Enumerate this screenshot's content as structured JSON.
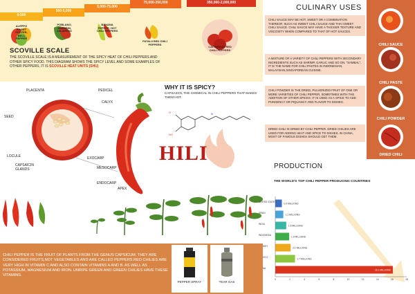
{
  "scoville": {
    "steps": [
      {
        "range": "0-500",
        "name": "ALEPPO SWEET PEPPER, BELL PEPPER",
        "color": "#f7b31c"
      },
      {
        "range": "500-5,000",
        "name": "POBLANO, ANAHEIM, JALAPENO",
        "color": "#f8a31a"
      },
      {
        "range": "5,000-75,000",
        "name": "BANANA PEPPER, HOT CHILI PEPPERS",
        "color": "#f58a1f"
      },
      {
        "range": "75,000-350,000",
        "name": "FATALII RED CHILI PEPPERS",
        "color": "#ef6a21"
      },
      {
        "range": "350,000-2,000,000",
        "name": "CARIBBEAN RED CHILI PEPPERS",
        "color": "#d9341d"
      }
    ],
    "title": "SCOVILLE SCALE",
    "description": "THE SCOVILLE SCALE IS A MEASUREMENT OF THE SPICY HEAT OF CHILI PEPPERS AND OTHER SPICY FOOD. THIS DIAGRAM SHOWS THE SPICY LEVEL AND SOME EXAMPLES OF OTHER PEPPERS, IT IS",
    "highlight": "SCOVILLE HEAT UNITS (SHU)"
  },
  "anatomy": {
    "labels": {
      "placenta": "PLACENTA",
      "pedicel": "PEDICEL",
      "calyx": "CALYX",
      "seed": "SEED",
      "locule": "LOCULE",
      "capsaicin": "CAPSAICIN GLANDS",
      "exocarp": "EXOCARP",
      "mesocarp": "MESOCARP",
      "endocarp": "ENDOCARP",
      "apex": "APEX"
    },
    "word": "HILI",
    "why_title": "WHY IT IS SPICY?",
    "why_text": "CAPSAICIN, THE CHEMICAL IN CHILI PEPPERS THAT MAKES THEM HOT."
  },
  "culinary": {
    "title": "CULINARY USES",
    "items": [
      {
        "text": "CHILI SAUCE MAY BE HOT, SWEET OR A COMBINATION THEREOF, SUCH AS SWEET CHILI SAUCE AND THAI SWEET CHILI SAUCE. CHILI SAUCE MAY HAVE A THICKER TEXTURE AND VISCOSITY WHEN COMPARED TO THAT OF HOT SAUCES.",
        "label": "CHILI SAUCE"
      },
      {
        "text": "A MIXTURE OF A VARIETY OF CHILI PEPPERS WITH SECONDARY INGREDIENTS SUCH AS SHRIMP, GARLIC AND SO ON. \"SAMBAL\", IT IS THE NAME FOR CHILI PASTES IN INDONESIAN, MALAYSIAN,SINGAPOREAN CUISINE.",
        "label": "CHILI PASTE"
      },
      {
        "text": "CHILI POWDER IS THE DRIED, PULVERIZED FRUIT OF ONE OR MORE VARIETIES OF CHILI PEPPER, SOMETIMES WITH THE ADDITION OF OTHER SPICES. IT IS USED AS A SPICE TO ADD PUNGENCY OR PIQUANCY AND FLAVOR TO DISHES.",
        "label": "CHILI POWDER"
      },
      {
        "text": "DRIED CHILI IS DRIED BY CHILI PEPPER. DRIED CHILIES ARE USED FOR ADDING HEAT AND SPICE TO DISHES. IN CHINA, MOST OF FAMOUS DISHES SHOULD GET THEM.",
        "label": "DRIED CHILI"
      }
    ]
  },
  "production": {
    "title": "PRODUCTION"
  },
  "chart_data": {
    "type": "bar",
    "title": "THE WORLD'S TOP CHILI PEPPER PRODUCING COUNTRIES",
    "categories": [
      "UNITED STATES",
      "SPAIN",
      "INDIA",
      "INDONESIA",
      "TURKEY",
      "MEXICO",
      "CHINA"
    ],
    "values": [
      0.9,
      1.1,
      1.5,
      1.9,
      2.1,
      2.7,
      16.1
    ],
    "value_labels": [
      "0.9 MILLIONS",
      "1.1 MILLIONS",
      "1.5 MILLIONS",
      "1.9 MILLIONS",
      "2.1 MILLIONS",
      "2.7 MILLIONS",
      "16.1 MILLIONS"
    ],
    "colors": [
      "#3b6fc4",
      "#4aa4d8",
      "#38b7a4",
      "#3fae4a",
      "#f0a81e",
      "#8dc63f",
      "#d9341d"
    ],
    "xlim": [
      0,
      18
    ],
    "xticks": [
      "0",
      "2",
      "4",
      "6",
      "8",
      "10",
      "12",
      "14",
      "16",
      "18"
    ]
  },
  "bottom": {
    "text": "CHILI PEPPER IS THE FRUIT OF PLANTS FROM THE GENUS CAPSICUM. THEY ARE CONSIDERED FRUITS,NOT VEGETABLES AND ARE CALLED PEPPERS.RED CHILIES ARE VERY HIGH IN VITAMIN C AND ALSO CONTAIN VITAMINS A AND B. AS WELL AS POTASSIUM, MAGNESIUM AND IRON. UNRIPE GREEN AND GREEN CHILIES HAVE THESE VITAMINS.",
    "spray_label": "PEPPER SPRAY",
    "gas_label": "TEAR GAS"
  }
}
